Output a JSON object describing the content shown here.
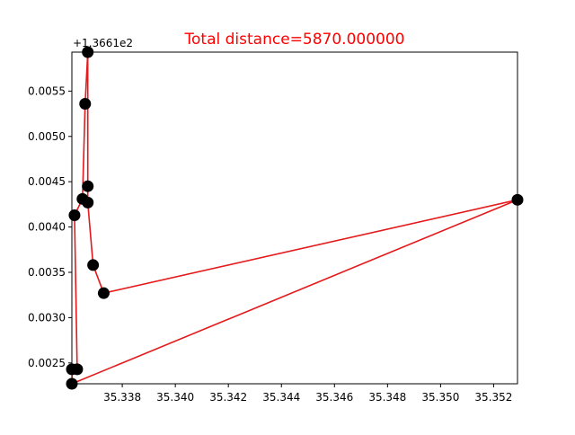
{
  "chart_data": {
    "type": "scatter",
    "title": "Total distance=5870.000000",
    "title_color": "#ff0000",
    "y_offset_label": "+1.3661e2",
    "xlabel": "",
    "ylabel": "",
    "xlim": [
      35.3361,
      35.3529
    ],
    "ylim": [
      0.00227,
      0.00593
    ],
    "x_ticks": [
      35.338,
      35.34,
      35.342,
      35.344,
      35.346,
      35.348,
      35.35,
      35.352
    ],
    "x_tick_labels": [
      "35.338",
      "35.340",
      "35.342",
      "35.344",
      "35.346",
      "35.348",
      "35.350",
      "35.352"
    ],
    "y_ticks": [
      0.0025,
      0.003,
      0.0035,
      0.004,
      0.0045,
      0.005,
      0.0055
    ],
    "y_tick_labels": [
      "0.0025",
      "0.0030",
      "0.0035",
      "0.0040",
      "0.0045",
      "0.0050",
      "0.0055"
    ],
    "grid": false,
    "points": [
      {
        "x": 35.3361,
        "y": 0.00243
      },
      {
        "x": 35.3363,
        "y": 0.00243
      },
      {
        "x": 35.3362,
        "y": 0.00413
      },
      {
        "x": 35.3365,
        "y": 0.00431
      },
      {
        "x": 35.3366,
        "y": 0.00536
      },
      {
        "x": 35.3367,
        "y": 0.00593
      },
      {
        "x": 35.3367,
        "y": 0.00445
      },
      {
        "x": 35.3367,
        "y": 0.00427
      },
      {
        "x": 35.3369,
        "y": 0.00358
      },
      {
        "x": 35.3373,
        "y": 0.00327
      },
      {
        "x": 35.3529,
        "y": 0.0043
      },
      {
        "x": 35.3361,
        "y": 0.00227
      }
    ],
    "route": [
      {
        "x": 35.3361,
        "y": 0.00227
      },
      {
        "x": 35.3361,
        "y": 0.00243
      },
      {
        "x": 35.3363,
        "y": 0.00243
      },
      {
        "x": 35.3362,
        "y": 0.00413
      },
      {
        "x": 35.3365,
        "y": 0.00431
      },
      {
        "x": 35.3366,
        "y": 0.00536
      },
      {
        "x": 35.3367,
        "y": 0.00593
      },
      {
        "x": 35.3367,
        "y": 0.00445
      },
      {
        "x": 35.3367,
        "y": 0.00427
      },
      {
        "x": 35.3369,
        "y": 0.00358
      },
      {
        "x": 35.3373,
        "y": 0.00327
      },
      {
        "x": 35.3529,
        "y": 0.0043
      },
      {
        "x": 35.3361,
        "y": 0.00227
      }
    ],
    "point_color": "#000000",
    "line_color": "#e41a1c"
  }
}
